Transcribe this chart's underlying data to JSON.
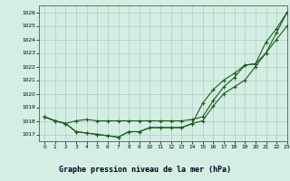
{
  "title": "Graphe pression niveau de la mer (hPa)",
  "xlim": [
    -0.5,
    23
  ],
  "ylim": [
    1016.5,
    1026.5
  ],
  "yticks": [
    1017,
    1018,
    1019,
    1020,
    1021,
    1022,
    1023,
    1024,
    1025,
    1026
  ],
  "xticks": [
    0,
    1,
    2,
    3,
    4,
    5,
    6,
    7,
    8,
    9,
    10,
    11,
    12,
    13,
    14,
    15,
    16,
    17,
    18,
    19,
    20,
    21,
    22,
    23
  ],
  "bg_color": "#d4eee4",
  "grid_color": "#b0ccc0",
  "line_color": "#1a5c1a",
  "series1_x": [
    0,
    1,
    2,
    3,
    4,
    5,
    6,
    7,
    8,
    9,
    10,
    11,
    12,
    13,
    14,
    15,
    16,
    17,
    18,
    19,
    20,
    21,
    22,
    23
  ],
  "series1_y": [
    1018.3,
    1018.0,
    1017.8,
    1017.2,
    1017.1,
    1017.0,
    1016.9,
    1016.8,
    1017.2,
    1017.2,
    1017.5,
    1017.5,
    1017.5,
    1017.5,
    1017.8,
    1018.0,
    1019.1,
    1020.0,
    1020.5,
    1021.0,
    1022.0,
    1023.0,
    1024.0,
    1025.0
  ],
  "series2_x": [
    0,
    1,
    2,
    3,
    4,
    5,
    6,
    7,
    8,
    9,
    10,
    11,
    12,
    13,
    14,
    15,
    16,
    17,
    18,
    19,
    20,
    21,
    22,
    23
  ],
  "series2_y": [
    1018.3,
    1018.0,
    1017.8,
    1018.0,
    1018.1,
    1018.0,
    1018.0,
    1018.0,
    1018.0,
    1018.0,
    1018.0,
    1018.0,
    1018.0,
    1018.0,
    1018.1,
    1018.3,
    1019.5,
    1020.5,
    1021.2,
    1022.1,
    1022.2,
    1023.8,
    1024.8,
    1026.0
  ],
  "series3_x": [
    0,
    1,
    2,
    3,
    4,
    5,
    6,
    7,
    8,
    9,
    10,
    11,
    12,
    13,
    14,
    15,
    16,
    17,
    18,
    19,
    20,
    21,
    22,
    23
  ],
  "series3_y": [
    1018.3,
    1018.0,
    1017.8,
    1017.2,
    1017.1,
    1017.0,
    1016.9,
    1016.8,
    1017.2,
    1017.2,
    1017.5,
    1017.5,
    1017.5,
    1017.5,
    1017.8,
    1019.3,
    1020.3,
    1021.0,
    1021.5,
    1022.1,
    1022.2,
    1023.0,
    1024.5,
    1026.0
  ],
  "title_fontsize": 6.0,
  "tick_fontsize": 4.2,
  "line_width": 0.8,
  "marker_size": 2.5
}
